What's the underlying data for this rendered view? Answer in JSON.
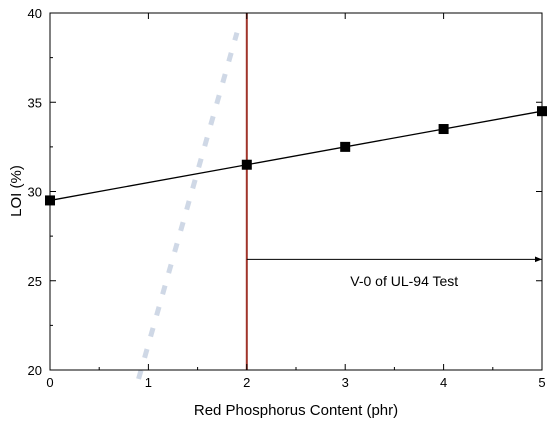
{
  "chart_data": {
    "type": "scatter",
    "title": "",
    "xlabel": "Red Phosphorus Content (phr)",
    "ylabel": "LOI (%)",
    "xlim": [
      0,
      5
    ],
    "ylim": [
      20,
      40
    ],
    "xticks": [
      0,
      1,
      2,
      3,
      4,
      5
    ],
    "yticks": [
      20,
      25,
      30,
      35,
      40
    ],
    "grid": false,
    "series": [
      {
        "marker": "square",
        "color": "#000000",
        "x": [
          0,
          2,
          3,
          4,
          5
        ],
        "y": [
          29.5,
          31.5,
          32.5,
          33.5,
          34.5
        ],
        "fit_line": {
          "x": [
            0,
            5
          ],
          "y": [
            29.5,
            34.5
          ]
        }
      },
      {
        "style": "dashed",
        "color": "#cfd8e6",
        "x": [
          0.9,
          1.9
        ],
        "y": [
          19.5,
          38.9
        ]
      }
    ],
    "annotations": [
      {
        "type": "vertical-line",
        "x": 2,
        "color": "#a0342a"
      },
      {
        "type": "arrow",
        "from": [
          2,
          26.2
        ],
        "to": [
          5,
          26.2
        ],
        "text": "V-0 of UL-94 Test",
        "text_x": 3.6,
        "text_y": 25
      }
    ]
  }
}
